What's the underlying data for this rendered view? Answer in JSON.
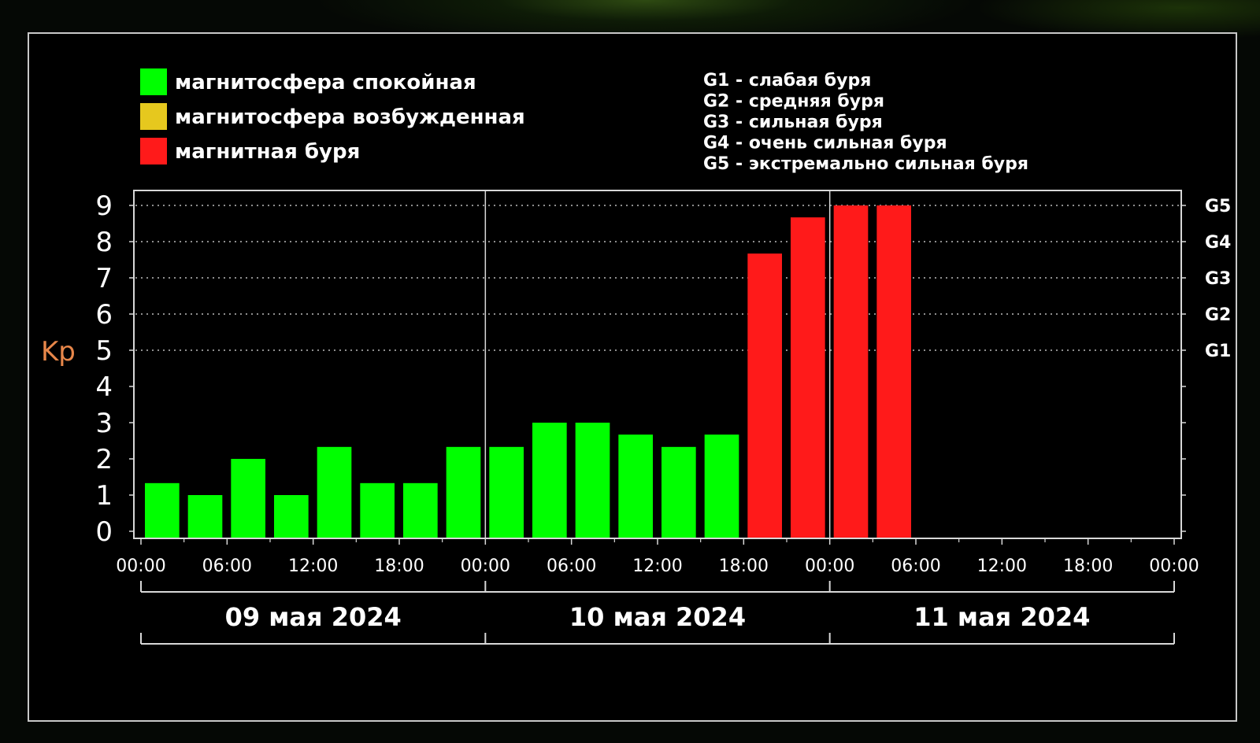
{
  "chart_data": {
    "type": "bar",
    "ylabel": "Kp",
    "ylim": [
      0,
      9
    ],
    "yticks": [
      0,
      1,
      2,
      3,
      4,
      5,
      6,
      7,
      8,
      9
    ],
    "right_axis": [
      {
        "label": "G1",
        "level": 5
      },
      {
        "label": "G2",
        "level": 6
      },
      {
        "label": "G3",
        "level": 7
      },
      {
        "label": "G4",
        "level": 8
      },
      {
        "label": "G5",
        "level": 9
      }
    ],
    "xtick_labels": [
      "00:00",
      "06:00",
      "12:00",
      "18:00",
      "00:00",
      "06:00",
      "12:00",
      "18:00",
      "00:00",
      "06:00",
      "12:00",
      "18:00",
      "00:00"
    ],
    "day_labels": [
      "09 мая 2024",
      "10 мая 2024",
      "11 мая 2024"
    ],
    "interval_hours": 3,
    "total_hours": 72,
    "bars": [
      {
        "start_hour": 0,
        "value": 1.33,
        "status": "quiet"
      },
      {
        "start_hour": 3,
        "value": 1.0,
        "status": "quiet"
      },
      {
        "start_hour": 6,
        "value": 2.0,
        "status": "quiet"
      },
      {
        "start_hour": 9,
        "value": 1.0,
        "status": "quiet"
      },
      {
        "start_hour": 12,
        "value": 2.33,
        "status": "quiet"
      },
      {
        "start_hour": 15,
        "value": 1.33,
        "status": "quiet"
      },
      {
        "start_hour": 18,
        "value": 1.33,
        "status": "quiet"
      },
      {
        "start_hour": 21,
        "value": 2.33,
        "status": "quiet"
      },
      {
        "start_hour": 24,
        "value": 2.33,
        "status": "quiet"
      },
      {
        "start_hour": 27,
        "value": 3.0,
        "status": "quiet"
      },
      {
        "start_hour": 30,
        "value": 3.0,
        "status": "quiet"
      },
      {
        "start_hour": 33,
        "value": 2.67,
        "status": "quiet"
      },
      {
        "start_hour": 36,
        "value": 2.33,
        "status": "quiet"
      },
      {
        "start_hour": 39,
        "value": 2.67,
        "status": "quiet"
      },
      {
        "start_hour": 42,
        "value": 7.67,
        "status": "storm"
      },
      {
        "start_hour": 45,
        "value": 8.67,
        "status": "storm"
      },
      {
        "start_hour": 48,
        "value": 9.0,
        "status": "storm"
      },
      {
        "start_hour": 51,
        "value": 9.0,
        "status": "storm"
      }
    ],
    "grid": "dotted horizontal lines at levels 5–9"
  },
  "legend": {
    "items": [
      {
        "label": "магнитосфера спокойная",
        "color": "#00ff00"
      },
      {
        "label": "магнитосфера возбужденная",
        "color": "#e6c81e"
      },
      {
        "label": "магнитная буря",
        "color": "#ff1a1a"
      }
    ]
  },
  "storm_levels_legend": [
    "G1 - слабая буря",
    "G2 - средняя буря",
    "G3 - сильная буря",
    "G4 - очень сильная буря",
    "G5 - экстремально сильная буря"
  ],
  "colors": {
    "quiet": "#00ff00",
    "active": "#e6c81e",
    "storm": "#ff1a1a",
    "axis": "#d8d8d8",
    "ylabel": "#e8874a"
  }
}
